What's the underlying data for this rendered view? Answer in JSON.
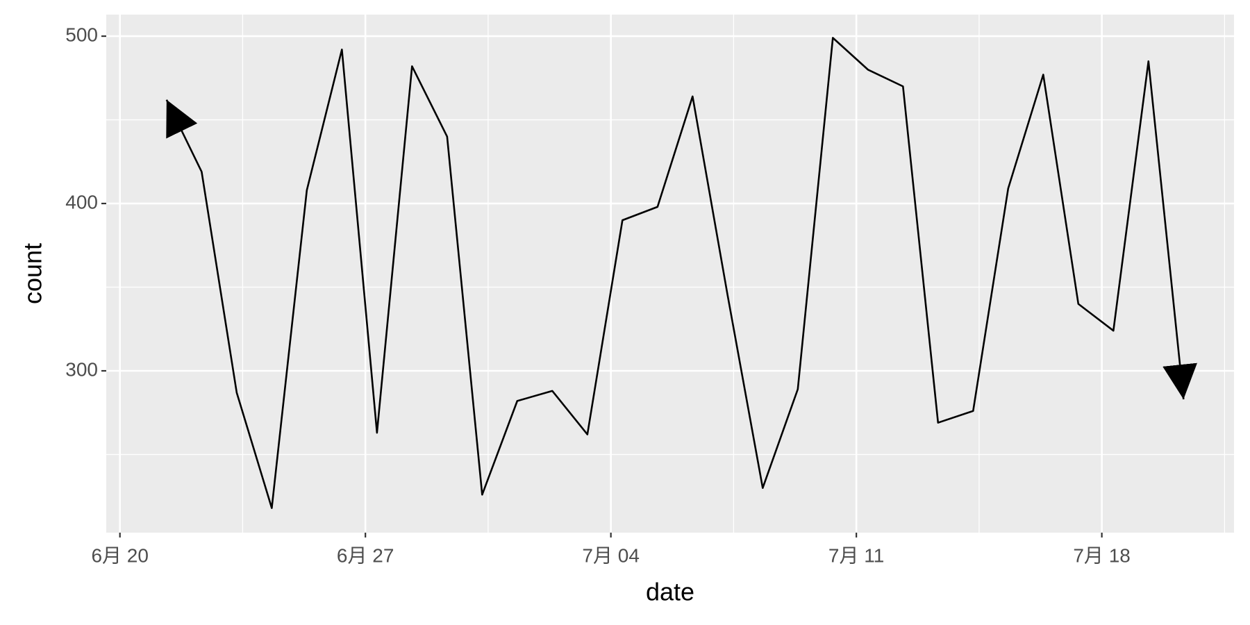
{
  "chart_data": {
    "type": "line",
    "x_label": "date",
    "y_label": "count",
    "x": [
      1.33,
      2.33,
      3.33,
      4.33,
      5.33,
      6.33,
      7.33,
      8.33,
      9.33,
      10.33,
      11.33,
      12.33,
      13.33,
      14.33,
      15.33,
      16.33,
      17.33,
      18.33,
      19.33,
      20.33,
      21.33,
      22.33,
      23.33,
      24.33,
      25.33,
      26.33,
      27.33,
      28.33,
      29.33,
      30.33
    ],
    "values": [
      462,
      419,
      287,
      218,
      408,
      492,
      263,
      482,
      440,
      226,
      282,
      288,
      262,
      390,
      398,
      464,
      345,
      230,
      289,
      499,
      480,
      470,
      269,
      276,
      409,
      477,
      340,
      324,
      485,
      283
    ],
    "color": "#000000",
    "arrow": "both",
    "xlim": [
      -0.39,
      31.77
    ],
    "xticks": [
      {
        "value": 0,
        "label": "6月 20"
      },
      {
        "value": 7,
        "label": "6月 27"
      },
      {
        "value": 14,
        "label": "7月 04"
      },
      {
        "value": 21,
        "label": "7月 11"
      },
      {
        "value": 28,
        "label": "7月 18"
      }
    ],
    "ylim": [
      203.3,
      512.9
    ],
    "yticks": [
      300,
      400,
      500
    ],
    "grid": true
  }
}
